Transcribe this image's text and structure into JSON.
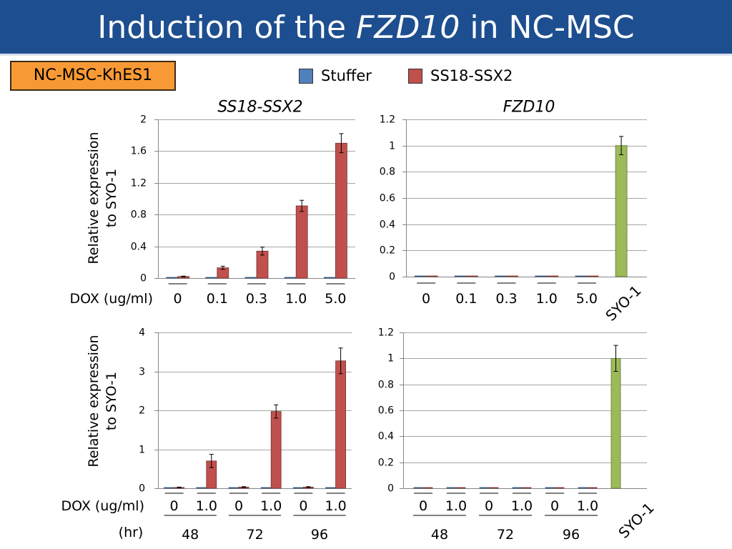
{
  "title": {
    "pre": "Induction of the ",
    "gene": "FZD10",
    "post": " in NC-MSC"
  },
  "cell_line": "NC-MSC-KhES1",
  "colors": {
    "header": "#1D4E8F",
    "cell_line_box": "#F79A35"
  },
  "chart_data": [
    {
      "type": "bar",
      "title": "SS18-SSX2",
      "ylabel": [
        "Relative expression",
        "to SYO-1"
      ],
      "xlabel": "DOX (ug/ml)",
      "categories": [
        "0",
        "0.1",
        "0.3",
        "1.0",
        "5.0"
      ],
      "ylim": [
        0,
        2
      ],
      "yticks": [
        "0",
        "0.4",
        "0.8",
        "1.2",
        "1.6",
        "2"
      ],
      "grid": true,
      "series": [
        {
          "name": "Stuffer",
          "color": "#4F81BD",
          "values": [
            0,
            0,
            0,
            0,
            0
          ]
        },
        {
          "name": "SS18-SSX2",
          "color": "#C0504D",
          "values": [
            0.02,
            0.13,
            0.34,
            0.91,
            1.7
          ],
          "errors": [
            0.005,
            0.02,
            0.05,
            0.07,
            0.12
          ]
        }
      ]
    },
    {
      "type": "bar",
      "title": "FZD10",
      "categories": [
        "0",
        "0.1",
        "0.3",
        "1.0",
        "5.0",
        "SYO-1"
      ],
      "ylim": [
        0,
        1.2
      ],
      "yticks": [
        "0",
        "0.2",
        "0.4",
        "0.6",
        "0.8",
        "1",
        "1.2"
      ],
      "grid": true,
      "series": [
        {
          "name": "Stuffer",
          "color": "#4F81BD",
          "values": [
            0,
            0,
            0,
            0,
            0,
            null
          ]
        },
        {
          "name": "SS18-SSX2",
          "color": "#C0504D",
          "values": [
            0,
            0,
            0,
            0,
            0,
            null
          ]
        },
        {
          "color": "#9BBB59",
          "values": [
            null,
            null,
            null,
            null,
            null,
            1.0
          ],
          "errors": [
            null,
            null,
            null,
            null,
            null,
            0.07
          ]
        }
      ]
    },
    {
      "type": "bar",
      "ylabel": [
        "Relative expression",
        "to SYO-1"
      ],
      "xlabel": "DOX (ug/ml)",
      "categories": [
        "0",
        "1.0",
        "0",
        "1.0",
        "0",
        "1.0"
      ],
      "time_label": "(hr)",
      "time_groups": [
        "48",
        "72",
        "96"
      ],
      "ylim": [
        0,
        4
      ],
      "yticks": [
        "0",
        "1",
        "2",
        "3",
        "4"
      ],
      "grid": true,
      "series": [
        {
          "name": "Stuffer",
          "color": "#4F81BD",
          "values": [
            0,
            0,
            0,
            0,
            0,
            0
          ]
        },
        {
          "name": "SS18-SSX2",
          "color": "#C0504D",
          "values": [
            0.02,
            0.7,
            0.03,
            1.97,
            0.03,
            3.27
          ],
          "errors": [
            0.01,
            0.17,
            0.01,
            0.17,
            0.01,
            0.33
          ]
        }
      ]
    },
    {
      "type": "bar",
      "categories": [
        "0",
        "1.0",
        "0",
        "1.0",
        "0",
        "1.0",
        "SYO-1"
      ],
      "time_groups": [
        "48",
        "72",
        "96"
      ],
      "ylim": [
        0,
        1.2
      ],
      "yticks": [
        "0",
        "0.2",
        "0.4",
        "0.6",
        "0.8",
        "1",
        "1.2"
      ],
      "grid": true,
      "series": [
        {
          "name": "Stuffer",
          "color": "#4F81BD",
          "values": [
            0,
            0,
            0,
            0,
            0,
            0,
            null
          ]
        },
        {
          "name": "SS18-SSX2",
          "color": "#C0504D",
          "values": [
            0,
            0,
            0,
            0,
            0,
            0,
            null
          ]
        },
        {
          "color": "#9BBB59",
          "values": [
            null,
            null,
            null,
            null,
            null,
            null,
            1.0
          ],
          "errors": [
            null,
            null,
            null,
            null,
            null,
            null,
            0.1
          ]
        }
      ]
    }
  ]
}
